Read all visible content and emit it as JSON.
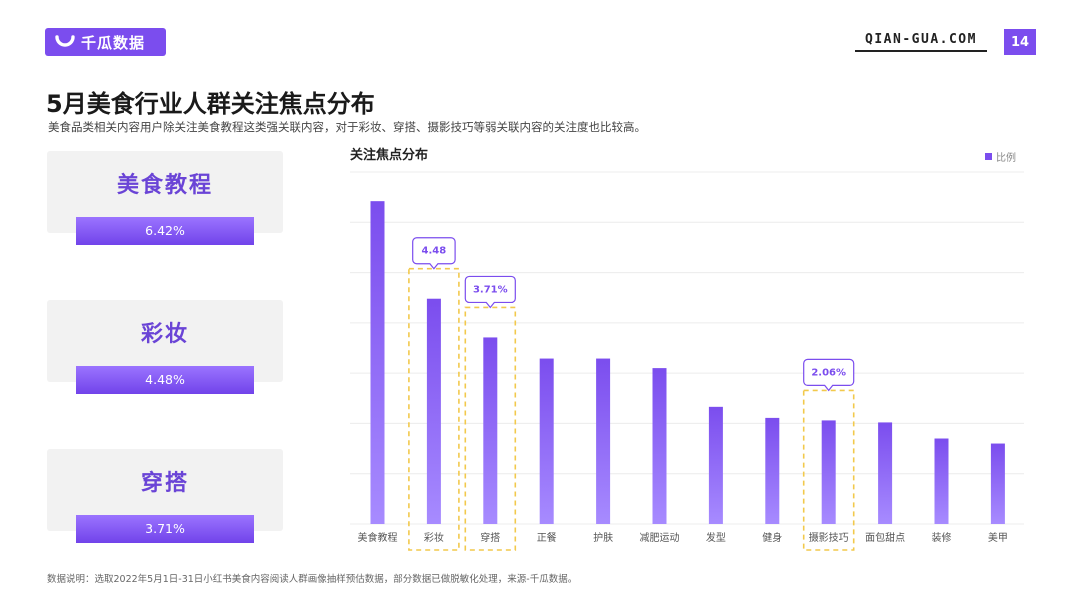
{
  "header": {
    "brand": "千瓜数据",
    "site": "QIAN-GUA.COM",
    "page_number": "14"
  },
  "title": "5月美食行业人群关注焦点分布",
  "subtitle": "美食品类相关内容用户除关注美食教程这类强关联内容，对于彩妆、穿搭、摄影技巧等弱关联内容的关注度也比较高。",
  "cards": [
    {
      "label": "美食教程",
      "value": "6.42%"
    },
    {
      "label": "彩妆",
      "value": "4.48%"
    },
    {
      "label": "穿搭",
      "value": "3.71%"
    }
  ],
  "colors": {
    "accent": "#7b4dee",
    "highlight_border": "#f2c94c"
  },
  "chart_data": {
    "type": "bar",
    "title": "关注焦点分布",
    "legend": "比例",
    "legend_position": "top-right",
    "categories": [
      "美食教程",
      "彩妆",
      "穿搭",
      "正餐",
      "护肤",
      "减肥运动",
      "发型",
      "健身",
      "摄影技巧",
      "面包甜点",
      "装修",
      "美甲"
    ],
    "values": [
      6.42,
      4.48,
      3.71,
      3.29,
      3.29,
      3.1,
      2.33,
      2.11,
      2.06,
      2.02,
      1.7,
      1.6
    ],
    "ylim": [
      0,
      7
    ],
    "grid": true,
    "highlights": [
      {
        "index": 1,
        "label": "4.48"
      },
      {
        "index": 2,
        "label": "3.71%"
      },
      {
        "index": 8,
        "label": "2.06%"
      }
    ]
  },
  "footnote": "数据说明：选取2022年5月1日-31日小红书美食内容阅读人群画像抽样预估数据，部分数据已做脱敏化处理，来源-千瓜数据。"
}
